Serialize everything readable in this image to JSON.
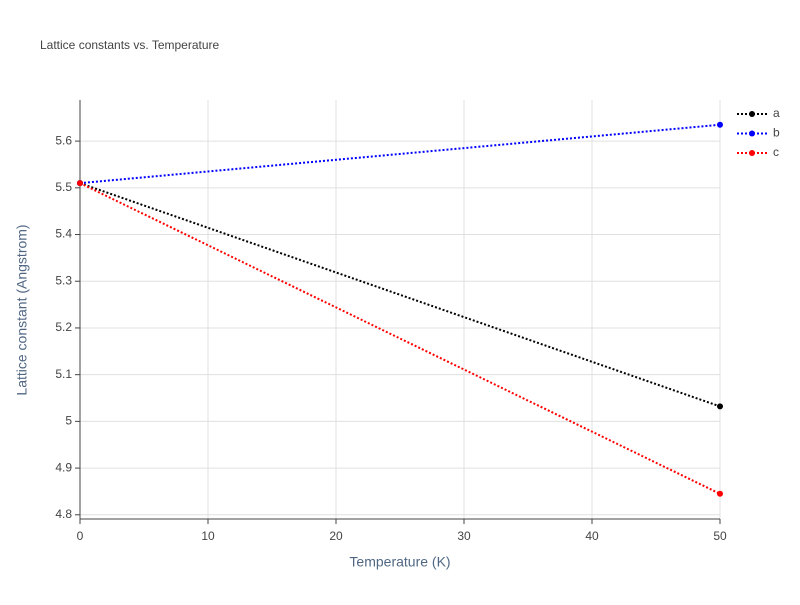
{
  "chart_data": {
    "type": "line",
    "title": "Lattice constants vs. Temperature",
    "xlabel": "Temperature (K)",
    "ylabel": "Lattice constant (Angstrom)",
    "x": [
      0,
      50
    ],
    "series": [
      {
        "name": "a",
        "color": "#000000",
        "values": [
          5.51,
          5.032
        ]
      },
      {
        "name": "b",
        "color": "#0000ff",
        "values": [
          5.51,
          5.635
        ]
      },
      {
        "name": "c",
        "color": "#ff0000",
        "values": [
          5.51,
          4.845
        ]
      }
    ],
    "xlim": [
      0,
      50
    ],
    "xticks": [
      0,
      10,
      20,
      30,
      40,
      50
    ],
    "ylim": [
      4.791,
      5.688
    ],
    "yticks": [
      4.8,
      4.9,
      5,
      5.1,
      5.2,
      5.3,
      5.4,
      5.5,
      5.6
    ],
    "grid": true,
    "legend": "top-right"
  }
}
